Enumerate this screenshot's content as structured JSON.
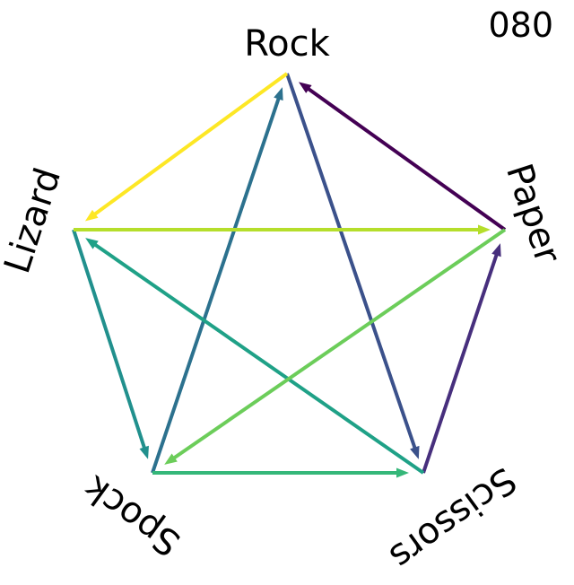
{
  "page_number": "080",
  "nodes": [
    {
      "id": "rock",
      "label": "Rock"
    },
    {
      "id": "paper",
      "label": "Paper"
    },
    {
      "id": "scissors",
      "label": "Scissors"
    },
    {
      "id": "spock",
      "label": "Spock"
    },
    {
      "id": "lizard",
      "label": "Lizard"
    }
  ],
  "edges": [
    {
      "from": "paper",
      "to": "rock",
      "color": "#440154"
    },
    {
      "from": "scissors",
      "to": "paper",
      "color": "#472f7d"
    },
    {
      "from": "rock",
      "to": "scissors",
      "color": "#3b518b"
    },
    {
      "from": "spock",
      "to": "rock",
      "color": "#2c718e"
    },
    {
      "from": "lizard",
      "to": "spock",
      "color": "#21908d"
    },
    {
      "from": "scissors",
      "to": "lizard",
      "color": "#1fa187"
    },
    {
      "from": "spock",
      "to": "scissors",
      "color": "#35b779"
    },
    {
      "from": "paper",
      "to": "spock",
      "color": "#6ccd5a"
    },
    {
      "from": "lizard",
      "to": "paper",
      "color": "#b5de2b"
    },
    {
      "from": "rock",
      "to": "lizard",
      "color": "#fde725"
    }
  ]
}
